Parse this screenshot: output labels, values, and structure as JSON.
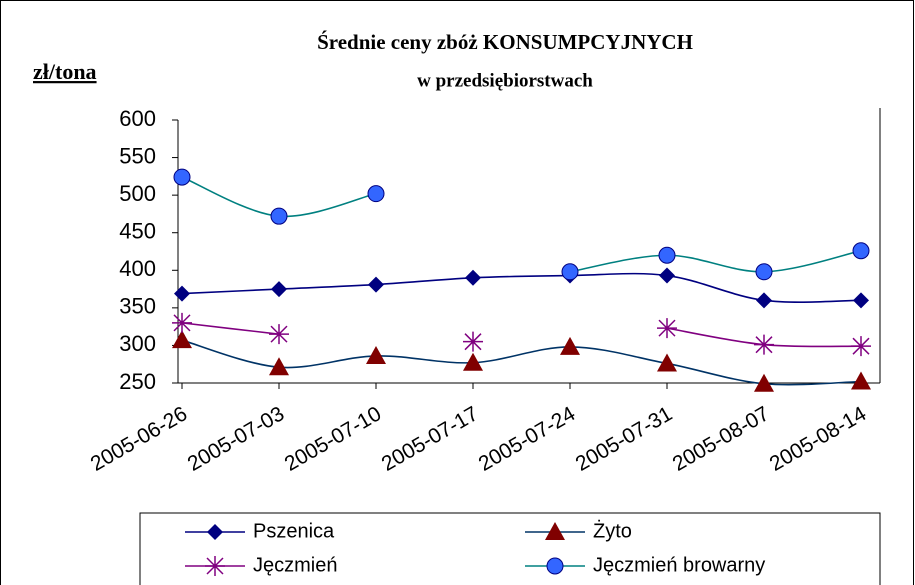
{
  "chart_data": {
    "type": "line",
    "title": [
      "Średnie ceny zbóż KONSUMPCYJNYCH",
      "w przedsiębiorstwach"
    ],
    "y_label": "zł/tona",
    "categories": [
      "2005-06-26",
      "2005-07-03",
      "2005-07-10",
      "2005-07-17",
      "2005-07-24",
      "2005-07-31",
      "2005-08-07",
      "2005-08-14"
    ],
    "series": [
      {
        "name": "Pszenica",
        "color": "#000080",
        "marker": "diamond",
        "marker_color": "#000080",
        "values": [
          369,
          375,
          381,
          390,
          393,
          393,
          360,
          360
        ]
      },
      {
        "name": "Żyto",
        "color": "#003366",
        "marker": "triangle",
        "marker_color": "#800000",
        "values": [
          307,
          271,
          286,
          277,
          298,
          276,
          249,
          252
        ]
      },
      {
        "name": "Jęczmień",
        "color": "#800080",
        "marker": "star",
        "marker_color": "#800080",
        "values": [
          330,
          315,
          null,
          305,
          null,
          323,
          301,
          299
        ]
      },
      {
        "name": "Jęczmień browarny",
        "color": "#008080",
        "marker": "circle",
        "marker_color": "#3366ff",
        "values": [
          524,
          472,
          502,
          null,
          398,
          420,
          398,
          426
        ]
      }
    ],
    "ylim": [
      250,
      600
    ],
    "yticks": [
      250,
      300,
      350,
      400,
      450,
      500,
      550,
      600
    ],
    "smooth": true,
    "legend": "bottom"
  }
}
